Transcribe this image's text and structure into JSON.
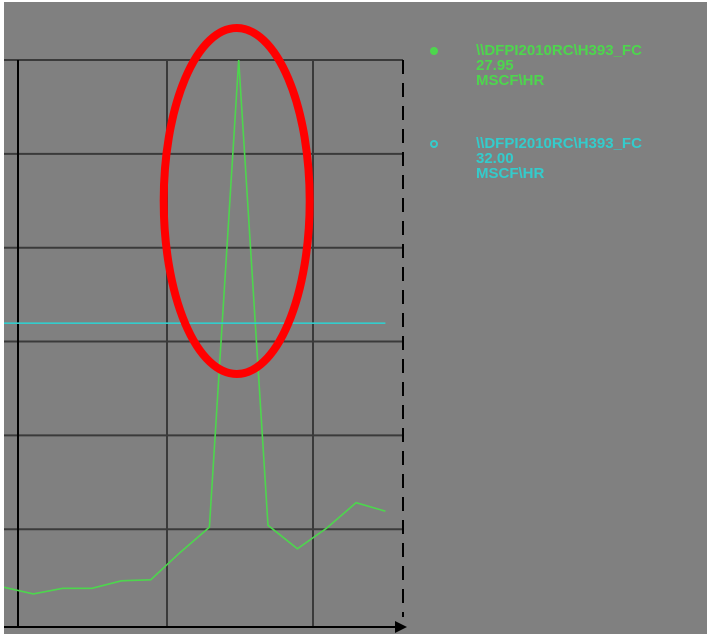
{
  "chart_data": {
    "type": "line",
    "x": [
      0,
      1,
      2,
      3,
      4,
      5,
      6,
      7,
      8,
      9,
      10,
      11,
      12,
      13
    ],
    "series": [
      {
        "name": "\\\\DFPI2010RC\\H393_FC",
        "value": "27.95",
        "unit": "MSCF\\HR",
        "color": "#4dd64d",
        "marker": "filled",
        "values": [
          3.9,
          3.2,
          3.8,
          3.8,
          4.6,
          4.7,
          7.6,
          10.3,
          60.0,
          10.5,
          8.0,
          10.2,
          12.9,
          12.0
        ]
      },
      {
        "name": "\\\\DFPI2010RC\\H393_FC",
        "value": "32.00",
        "unit": "MSCF\\HR",
        "color": "#33cccc",
        "marker": "hollow",
        "values": [
          32.0,
          32.0,
          32.0,
          32.0,
          32.0,
          32.0,
          32.0,
          32.0,
          32.0,
          32.0,
          32.0,
          32.0,
          32.0,
          32.0
        ]
      }
    ],
    "ylim": [
      0,
      60
    ],
    "xlim": [
      0,
      13.6
    ],
    "grid": true,
    "legend": "right",
    "x_tick_label": "",
    "annotation": {
      "shape": "ellipse",
      "color": "#ff0000",
      "marks": "spike peak"
    }
  },
  "colors": {
    "panel_background": "#808080",
    "grid": "#3a3a3a",
    "axis": "#000000"
  }
}
